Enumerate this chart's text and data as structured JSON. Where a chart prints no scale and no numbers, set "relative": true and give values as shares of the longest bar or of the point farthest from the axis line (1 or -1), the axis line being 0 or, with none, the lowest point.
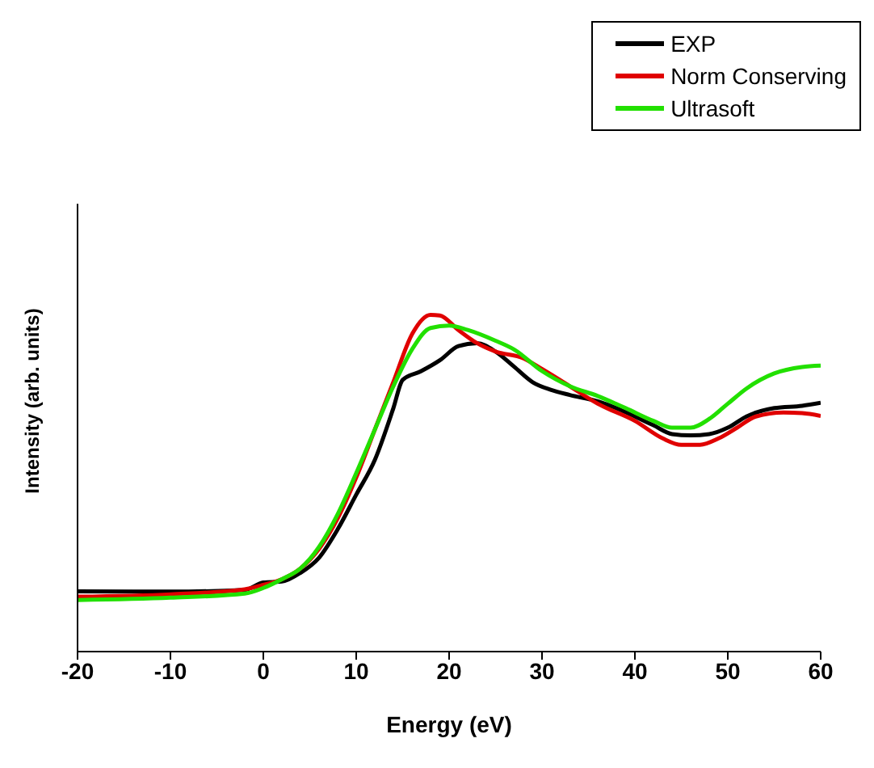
{
  "chart_data": {
    "type": "line",
    "xlabel": "Energy (eV)",
    "ylabel": "Intensity (arb. units)",
    "relative": true,
    "xlim": [
      -20,
      60
    ],
    "xticks": [
      -20,
      -10,
      0,
      10,
      20,
      30,
      40,
      50,
      60
    ],
    "grid": false,
    "legend": "top right",
    "marker": "none",
    "line_style": "solid",
    "series": [
      {
        "name": "EXP",
        "color": "#000000",
        "x": [
          -20,
          -10,
          -2,
          0,
          2,
          4,
          6,
          8,
          10,
          12,
          14,
          15,
          17,
          19,
          21,
          23,
          25,
          27,
          29,
          31,
          33,
          36,
          38,
          40,
          42,
          44,
          46,
          48,
          50,
          52,
          55,
          58,
          60
        ],
        "values": [
          0.179,
          0.178,
          0.183,
          0.205,
          0.208,
          0.234,
          0.279,
          0.363,
          0.466,
          0.569,
          0.723,
          0.807,
          0.833,
          0.865,
          0.907,
          0.916,
          0.891,
          0.846,
          0.8,
          0.777,
          0.762,
          0.743,
          0.723,
          0.698,
          0.672,
          0.646,
          0.642,
          0.646,
          0.665,
          0.698,
          0.723,
          0.73,
          0.739
        ]
      },
      {
        "name": "Norm Conserving",
        "color": "#e00000",
        "x": [
          -20,
          -10,
          -2,
          0,
          2,
          4,
          6,
          8,
          10,
          12,
          14,
          16,
          18,
          19,
          21,
          23,
          25,
          28,
          30,
          33,
          36,
          40,
          43,
          45,
          47,
          49,
          51,
          53,
          56,
          58,
          60
        ],
        "values": [
          0.163,
          0.17,
          0.185,
          0.198,
          0.215,
          0.247,
          0.305,
          0.395,
          0.517,
          0.659,
          0.801,
          0.942,
          1,
          0.998,
          0.955,
          0.916,
          0.891,
          0.871,
          0.839,
          0.788,
          0.736,
          0.685,
          0.633,
          0.614,
          0.614,
          0.633,
          0.665,
          0.698,
          0.71,
          0.708,
          0.7
        ]
      },
      {
        "name": "Ultrasoft",
        "color": "#22e000",
        "x": [
          -20,
          -10,
          -2,
          0,
          2,
          4,
          6,
          8,
          10,
          12,
          14,
          16,
          18,
          20,
          22,
          25,
          27,
          30,
          33,
          36,
          39,
          42,
          44,
          46,
          48,
          50,
          52,
          55,
          58,
          60
        ],
        "values": [
          0.153,
          0.16,
          0.172,
          0.189,
          0.215,
          0.247,
          0.311,
          0.408,
          0.53,
          0.659,
          0.788,
          0.897,
          0.961,
          0.968,
          0.955,
          0.923,
          0.897,
          0.833,
          0.788,
          0.759,
          0.723,
          0.685,
          0.665,
          0.665,
          0.691,
          0.736,
          0.781,
          0.826,
          0.845,
          0.849
        ]
      }
    ]
  }
}
